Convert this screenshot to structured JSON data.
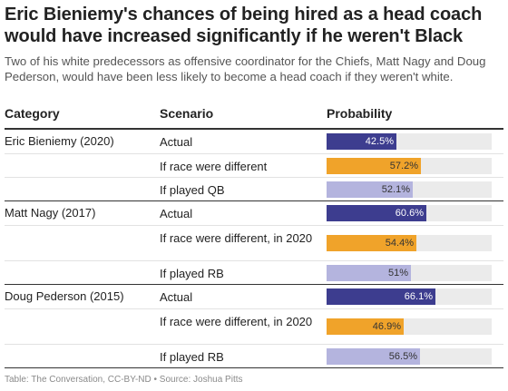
{
  "title": "Eric Bieniemy's chances of being hired as a head coach would have increased significantly if he weren't Black",
  "subtitle": "Two of his white predecessors as offensive coordinator for the Chiefs, Matt Nagy and Doug Pederson, would have been less likely to become a head coach if they weren't white.",
  "columns": {
    "category": "Category",
    "scenario": "Scenario",
    "probability": "Probability"
  },
  "footer": "Table: The Conversation, CC-BY-ND • Source: Joshua Pitts",
  "colors": {
    "actual": "#3d3d8f",
    "race": "#f0a32a",
    "position": "#b4b4de",
    "track": "#ebebeb",
    "label_on_dark": "#ffffff",
    "label_on_light": "#333333"
  },
  "chart_data": {
    "type": "table",
    "value_max": 100,
    "groups": [
      {
        "category": "Eric Bieniemy (2020)",
        "rows": [
          {
            "scenario": "Actual",
            "value": 42.5,
            "label": "42.5%",
            "kind": "actual"
          },
          {
            "scenario": "If race were different",
            "value": 57.2,
            "label": "57.2%",
            "kind": "race"
          },
          {
            "scenario": "If played QB",
            "value": 52.1,
            "label": "52.1%",
            "kind": "position"
          }
        ]
      },
      {
        "category": "Matt Nagy (2017)",
        "rows": [
          {
            "scenario": "Actual",
            "value": 60.6,
            "label": "60.6%",
            "kind": "actual"
          },
          {
            "scenario": "If race were different, in 2020",
            "value": 54.4,
            "label": "54.4%",
            "kind": "race"
          },
          {
            "scenario": "If played RB",
            "value": 51,
            "label": "51%",
            "kind": "position"
          }
        ]
      },
      {
        "category": "Doug Pederson (2015)",
        "rows": [
          {
            "scenario": "Actual",
            "value": 66.1,
            "label": "66.1%",
            "kind": "actual"
          },
          {
            "scenario": "If race were different, in 2020",
            "value": 46.9,
            "label": "46.9%",
            "kind": "race"
          },
          {
            "scenario": "If played RB",
            "value": 56.5,
            "label": "56.5%",
            "kind": "position"
          }
        ]
      }
    ]
  }
}
